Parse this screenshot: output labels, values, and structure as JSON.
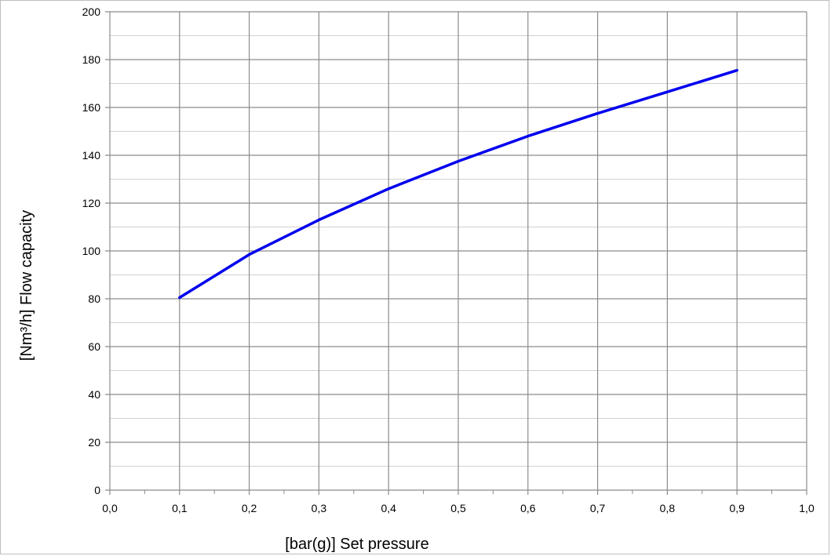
{
  "chart_data": {
    "type": "line",
    "title": "",
    "xlabel": "[bar(g)]  Set pressure",
    "ylabel": "[Nm³/h]  Flow capacity",
    "xlim": [
      0.0,
      1.0
    ],
    "ylim": [
      0,
      200
    ],
    "x_ticks": [
      "0,0",
      "0,1",
      "0,2",
      "0,3",
      "0,4",
      "0,5",
      "0,6",
      "0,7",
      "0,8",
      "0,9",
      "1,0"
    ],
    "y_ticks": [
      "0",
      "20",
      "40",
      "60",
      "80",
      "100",
      "120",
      "140",
      "160",
      "180",
      "200"
    ],
    "grid": true,
    "legend": "none",
    "series": [
      {
        "color": "#0000ee",
        "x": [
          0.1,
          0.2,
          0.3,
          0.4,
          0.5,
          0.6,
          0.7,
          0.8,
          0.9
        ],
        "y": [
          80.5,
          98.5,
          113,
          126,
          137.5,
          148,
          157.5,
          166.5,
          175.5
        ]
      }
    ]
  }
}
